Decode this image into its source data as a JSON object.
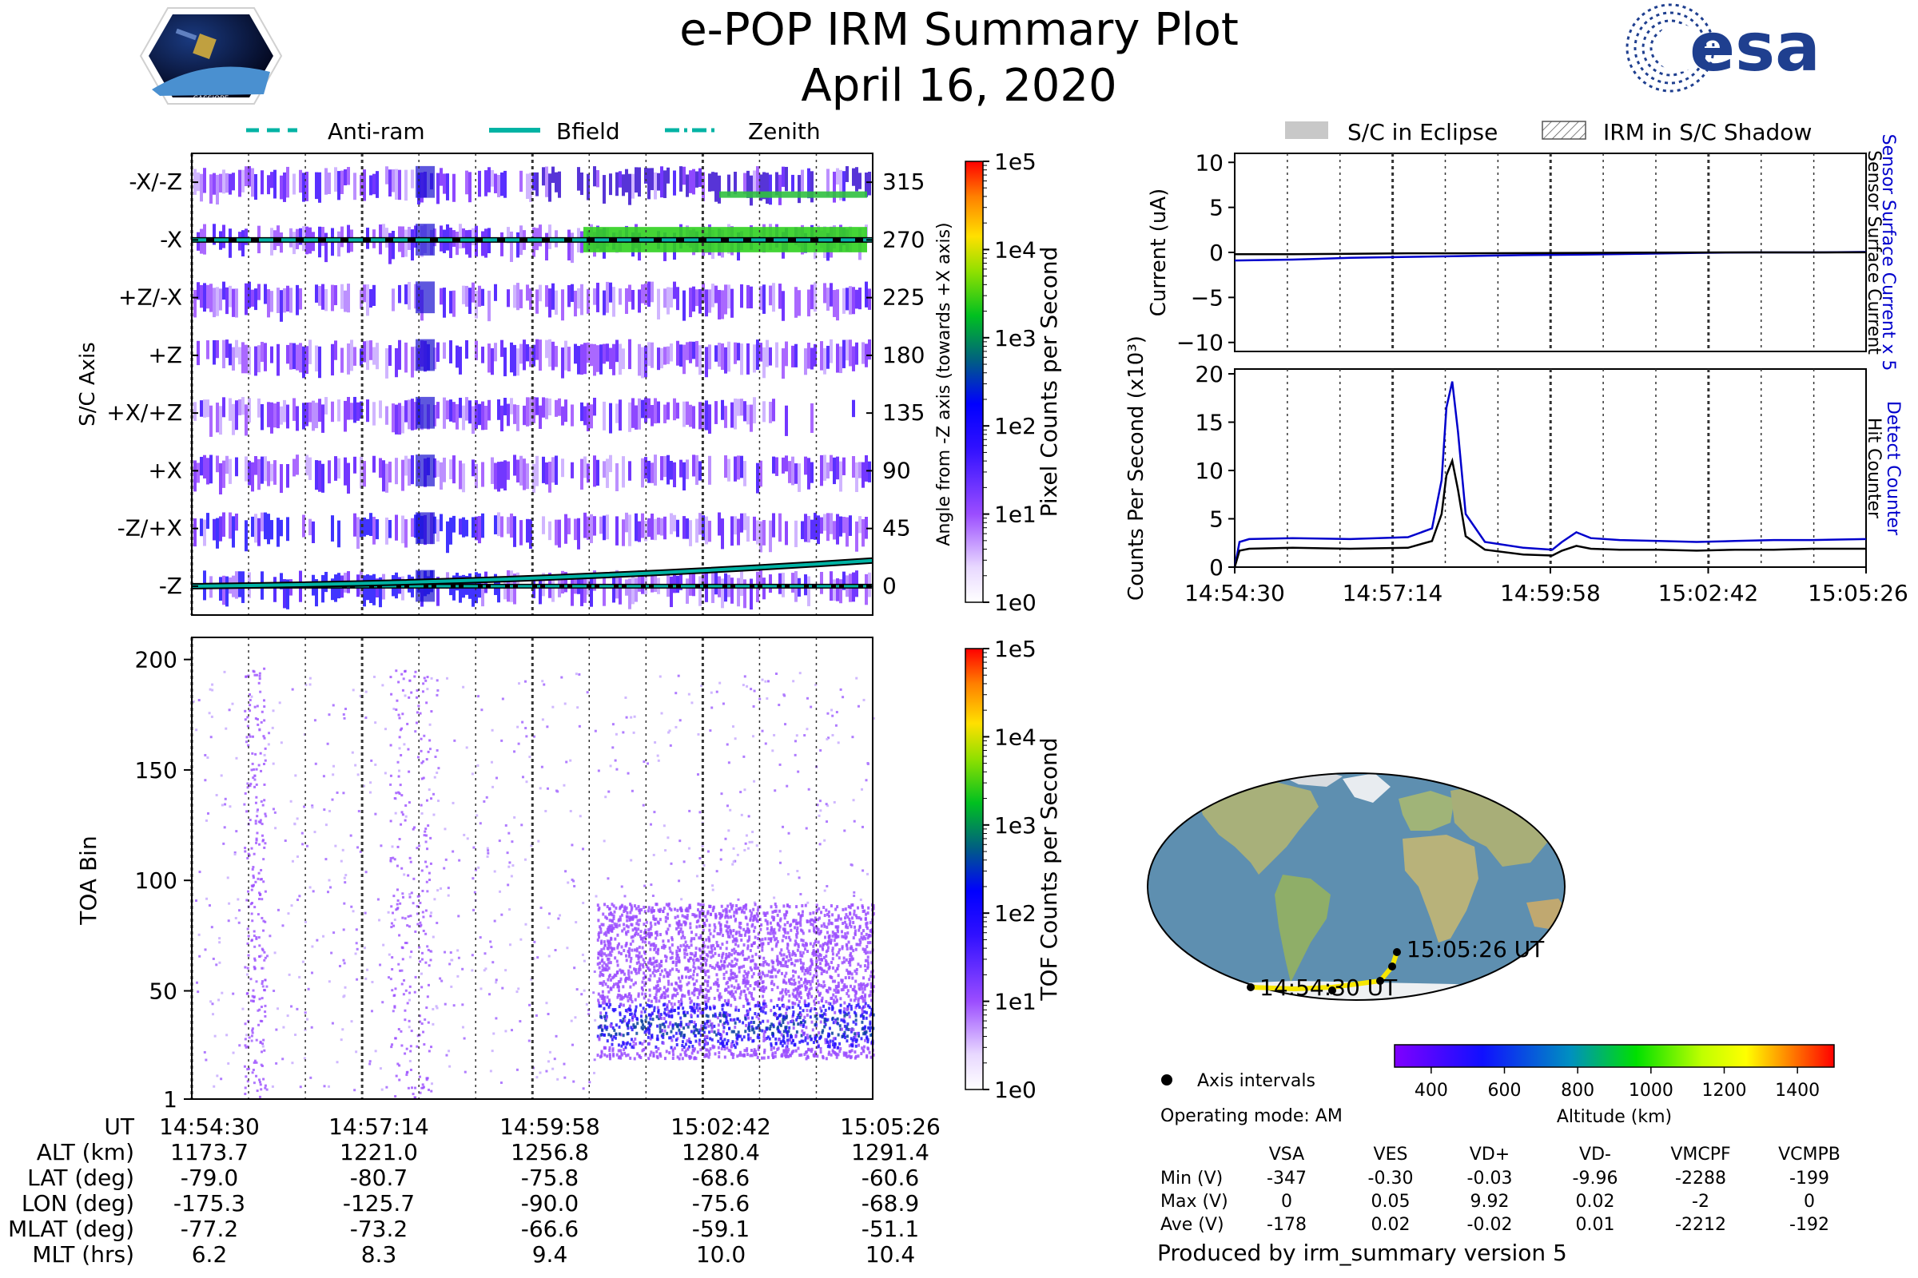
{
  "header": {
    "title": "e-POP IRM Summary Plot",
    "date": "April 16, 2020",
    "logo_left_text": "CASSIOPE",
    "logo_right_text": "esa"
  },
  "colors": {
    "bfield": "#00b3a4",
    "eclipse": "#c8c8c8",
    "detect_counter": "#0000cc",
    "hit_counter": "#000000",
    "track": "#f7e600",
    "ocean": "#5e8fb0",
    "land": "#a8b07a"
  },
  "legend_left": [
    {
      "label": "Anti-ram",
      "style": "dashed"
    },
    {
      "label": "Bfield",
      "style": "solid"
    },
    {
      "label": "Zenith",
      "style": "dashdot"
    }
  ],
  "legend_right": [
    {
      "label": "S/C in Eclipse",
      "style": "filled"
    },
    {
      "label": "IRM in S/C Shadow",
      "style": "hatched"
    }
  ],
  "chart_data": [
    {
      "id": "sc_axis_spectrogram",
      "type": "heatmap",
      "ylabel": "S/C Axis",
      "y_categories": [
        "-X/-Z",
        "-X",
        "+Z/-X",
        "+Z",
        "+X/+Z",
        "+X",
        "-Z/+X",
        "-Z"
      ],
      "y_right_ticks": [
        "315",
        "270",
        "225",
        "180",
        "135",
        "90",
        "45",
        "0"
      ],
      "y_right_label": "Angle from -Z axis (towards +X axis)",
      "x_time_range": [
        "14:54:30",
        "15:05:26"
      ],
      "colorbar": {
        "label": "Pixel Counts per Second",
        "ticks": [
          "1e0",
          "1e1",
          "1e2",
          "1e3",
          "1e4",
          "1e5"
        ],
        "scale": "log"
      },
      "overlays": [
        {
          "name": "Anti-ram",
          "approx_angle_deg": 270
        },
        {
          "name": "Zenith",
          "approx_angle_deg": 0
        },
        {
          "name": "Bfield",
          "angle_deg_start": 0,
          "angle_deg_end": 20
        }
      ]
    },
    {
      "id": "toa_spectrogram",
      "type": "heatmap",
      "ylabel": "TOA Bin",
      "y_ticks": [
        "1",
        "50",
        "100",
        "150",
        "200"
      ],
      "ylim": [
        1,
        210
      ],
      "x_time_range": [
        "14:54:30",
        "15:05:26"
      ],
      "colorbar": {
        "label": "TOF Counts per Second",
        "ticks": [
          "1e0",
          "1e1",
          "1e2",
          "1e3",
          "1e4",
          "1e5"
        ],
        "scale": "log"
      },
      "dense_region": {
        "start_time": "15:01:00",
        "toa_min": 20,
        "toa_max": 90,
        "peak_toa": 35
      }
    },
    {
      "id": "current",
      "type": "line",
      "ylabel": "Current (uA)",
      "y_ticks": [
        "10",
        "5",
        "0",
        "−5",
        "−10"
      ],
      "ylim": [
        -11,
        11
      ],
      "right_labels": [
        "Sensor Surface Current x 5",
        "Sensor Surface Current"
      ],
      "x": [
        0,
        60,
        120,
        180,
        240,
        300,
        360,
        420,
        480,
        540,
        600,
        656
      ],
      "series": [
        {
          "name": "Sensor Surface Current x 5",
          "values": [
            -0.9,
            -0.8,
            -0.6,
            -0.5,
            -0.4,
            -0.3,
            -0.25,
            -0.15,
            -0.05,
            0.0,
            0.0,
            0.05
          ]
        },
        {
          "name": "Sensor Surface Current",
          "values": [
            -0.2,
            -0.2,
            -0.15,
            -0.1,
            -0.1,
            -0.08,
            -0.05,
            -0.03,
            -0.01,
            0.0,
            0.0,
            0.01
          ]
        }
      ]
    },
    {
      "id": "counts",
      "type": "line",
      "ylabel": "Counts Per Second (x10³)",
      "y_ticks": [
        "20",
        "15",
        "10",
        "5",
        "0"
      ],
      "ylim": [
        0,
        20.5
      ],
      "right_labels": [
        "Detect Counter",
        "Hit Counter"
      ],
      "x_ticks": [
        "14:54:30",
        "14:57:14",
        "14:59:58",
        "15:02:42",
        "15:05:26"
      ],
      "x": [
        0,
        5,
        15,
        60,
        120,
        180,
        205,
        215,
        220,
        226,
        232,
        240,
        260,
        300,
        330,
        340,
        355,
        370,
        400,
        440,
        480,
        520,
        560,
        600,
        656
      ],
      "series": [
        {
          "name": "Detect Counter",
          "values": [
            0,
            2.6,
            2.9,
            3.0,
            2.9,
            3.1,
            4.0,
            9.0,
            16.5,
            19.2,
            14.0,
            5.5,
            2.6,
            2.0,
            1.8,
            2.6,
            3.6,
            3.0,
            2.8,
            2.7,
            2.6,
            2.7,
            2.8,
            2.8,
            2.9
          ]
        },
        {
          "name": "Hit Counter",
          "values": [
            0,
            1.7,
            1.9,
            2.0,
            1.9,
            2.0,
            2.7,
            5.5,
            9.5,
            11.0,
            8.0,
            3.2,
            1.8,
            1.3,
            1.2,
            1.7,
            2.2,
            1.9,
            1.8,
            1.8,
            1.7,
            1.8,
            1.8,
            1.9,
            1.9
          ]
        }
      ]
    }
  ],
  "map": {
    "start_label": "14:54:30 UT",
    "end_label": "15:05:26 UT",
    "legend_label": "Axis intervals",
    "altitude_colorbar_label": "Altitude (km)",
    "altitude_ticks": [
      "400",
      "600",
      "800",
      "1000",
      "1200",
      "1400"
    ],
    "altitude_range": [
      300,
      1500
    ]
  },
  "operating_mode": "Operating mode: AM",
  "voltages": {
    "columns": [
      "VSA",
      "VES",
      "VD+",
      "VD-",
      "VMCPF",
      "VCMPB"
    ],
    "rows": [
      {
        "label": "Min (V)",
        "values": [
          "-347",
          "-0.30",
          "-0.03",
          "-9.96",
          "-2288",
          "-199"
        ]
      },
      {
        "label": "Max (V)",
        "values": [
          "0",
          "0.05",
          "9.92",
          "0.02",
          "-2",
          "0"
        ]
      },
      {
        "label": "Ave (V)",
        "values": [
          "-178",
          "0.02",
          "-0.02",
          "0.01",
          "-2212",
          "-192"
        ]
      }
    ]
  },
  "footer": "Produced by irm_summary version 5",
  "ephemeris": {
    "row_labels": [
      "UT",
      "ALT (km)",
      "LAT (deg)",
      "LON (deg)",
      "MLAT (deg)",
      "MLT (hrs)"
    ],
    "columns": [
      [
        "14:54:30",
        "1173.7",
        "-79.0",
        "-175.3",
        "-77.2",
        "6.2"
      ],
      [
        "14:57:14",
        "1221.0",
        "-80.7",
        "-125.7",
        "-73.2",
        "8.3"
      ],
      [
        "14:59:58",
        "1256.8",
        "-75.8",
        "-90.0",
        "-66.6",
        "9.4"
      ],
      [
        "15:02:42",
        "1280.4",
        "-68.6",
        "-75.6",
        "-59.1",
        "10.0"
      ],
      [
        "15:05:26",
        "1291.4",
        "-60.6",
        "-68.9",
        "-51.1",
        "10.4"
      ]
    ]
  }
}
